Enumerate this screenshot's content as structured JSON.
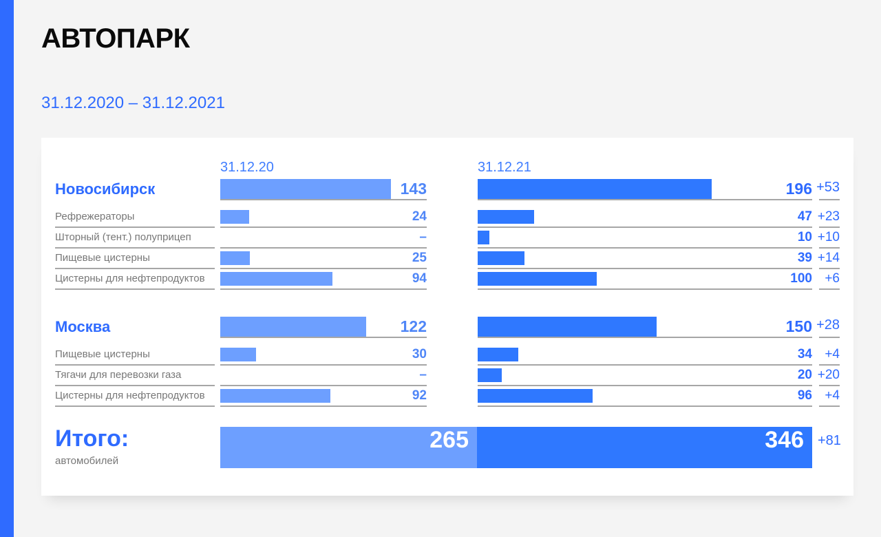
{
  "title": "АВТОПАРК",
  "period": "31.12.2020 – 31.12.2021",
  "colors": {
    "accent": "#2f6bff",
    "bar_2020": "#6d9fff",
    "bar_2021": "#2f78ff"
  },
  "chart_data": {
    "type": "bar",
    "column_headers": [
      "31.12.20",
      "31.12.21"
    ],
    "series_names": [
      "31.12.20",
      "31.12.21"
    ],
    "groups": [
      {
        "name": "Новосибирск",
        "v2020": 143,
        "t2020": "143",
        "v2021": 196,
        "t2021": "196",
        "diff": "+53",
        "items": [
          {
            "label": "Рефрежераторы",
            "v2020": 24,
            "t2020": "24",
            "v2021": 47,
            "t2021": "47",
            "diff": "+23"
          },
          {
            "label": "Шторный (тент.) полуприцеп",
            "v2020": 0,
            "t2020": "–",
            "v2021": 10,
            "t2021": "10",
            "diff": "+10"
          },
          {
            "label": "Пищевые цистерны",
            "v2020": 25,
            "t2020": "25",
            "v2021": 39,
            "t2021": "39",
            "diff": "+14"
          },
          {
            "label": "Цистерны для нефтепродуктов",
            "v2020": 94,
            "t2020": "94",
            "v2021": 100,
            "t2021": "100",
            "diff": "+6"
          }
        ]
      },
      {
        "name": "Москва",
        "v2020": 122,
        "t2020": "122",
        "v2021": 150,
        "t2021": "150",
        "diff": "+28",
        "items": [
          {
            "label": "Пищевые цистерны",
            "v2020": 30,
            "t2020": "30",
            "v2021": 34,
            "t2021": "34",
            "diff": "+4"
          },
          {
            "label": "Тягачи для перевозки газа",
            "v2020": 0,
            "t2020": "–",
            "v2021": 20,
            "t2021": "20",
            "diff": "+20"
          },
          {
            "label": "Цистерны для нефтепродуктов",
            "v2020": 92,
            "t2020": "92",
            "v2021": 96,
            "t2021": "96",
            "diff": "+4"
          }
        ]
      }
    ],
    "total": {
      "label": "Итого:",
      "sublabel": "автомобилей",
      "v2020": 265,
      "t2020": "265",
      "v2021": 346,
      "t2021": "346",
      "diff": "+81"
    }
  }
}
